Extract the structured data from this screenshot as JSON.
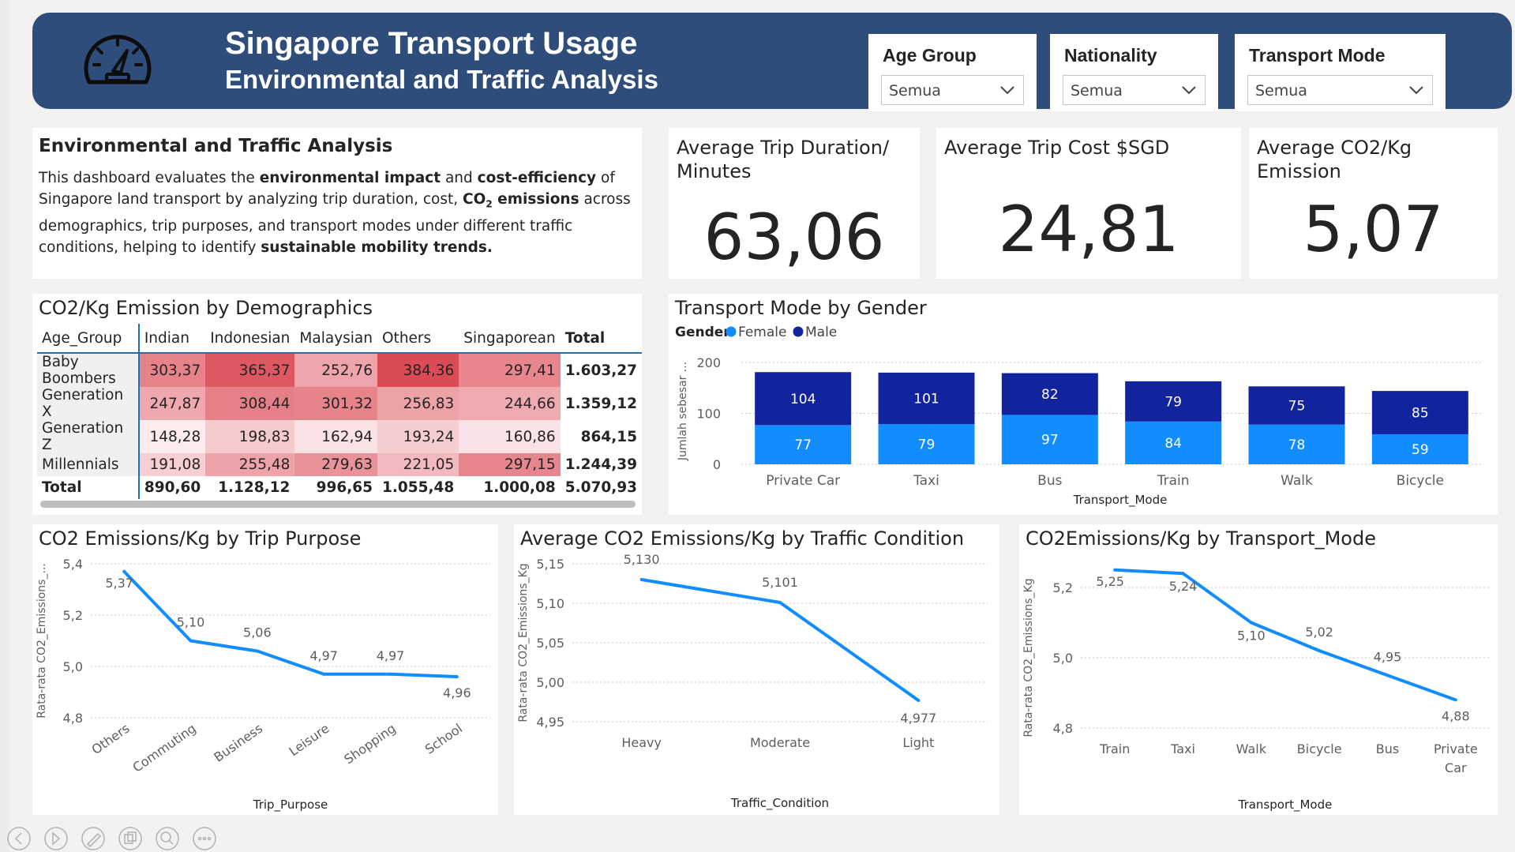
{
  "header": {
    "title": "Singapore Transport Usage",
    "subtitle": "Environmental and Traffic Analysis",
    "logo_icon": "speedometer-icon"
  },
  "filters": [
    {
      "label": "Age Group",
      "value": "Semua"
    },
    {
      "label": "Nationality",
      "value": "Semua"
    },
    {
      "label": "Transport Mode",
      "value": "Semua"
    }
  ],
  "description": {
    "heading": "Environmental and Traffic Analysis",
    "p1": "This dashboard evaluates the ",
    "b1": "environmental impact",
    "p2": " and ",
    "b2": "cost-efficiency",
    "p3": " of Singapore land transport by analyzing trip duration, cost, ",
    "b3": "CO",
    "b3sub": "2",
    "b3b": " emissions",
    "p4": " across demographics, trip purposes, and transport modes under different traffic conditions, helping to identify ",
    "b4": "sustainable mobility trends."
  },
  "kpis": [
    {
      "title": "Average Trip Duration/ Minutes",
      "value": "63,06"
    },
    {
      "title": "Average Trip Cost $SGD",
      "value": "24,81"
    },
    {
      "title": "Average CO2/Kg Emission",
      "value": "5,07"
    }
  ],
  "matrix": {
    "title": "CO2/Kg Emission by Demographics",
    "corner": "Age_Group",
    "columns": [
      "Indian",
      "Indonesian",
      "Malaysian",
      "Others",
      "Singaporean",
      "Total"
    ],
    "rows": [
      {
        "label": "Baby Boombers",
        "cells": [
          "303,37",
          "365,37",
          "252,76",
          "384,36",
          "297,41",
          "1.603,27"
        ],
        "raw": [
          303.37,
          365.37,
          252.76,
          384.36,
          297.41
        ]
      },
      {
        "label": "Generation X",
        "cells": [
          "247,87",
          "308,44",
          "301,32",
          "256,83",
          "244,66",
          "1.359,12"
        ],
        "raw": [
          247.87,
          308.44,
          301.32,
          256.83,
          244.66
        ]
      },
      {
        "label": "Generation Z",
        "cells": [
          "148,28",
          "198,83",
          "162,94",
          "193,24",
          "160,86",
          "864,15"
        ],
        "raw": [
          148.28,
          198.83,
          162.94,
          193.24,
          160.86
        ]
      },
      {
        "label": "Millennials",
        "cells": [
          "191,08",
          "255,48",
          "279,63",
          "221,05",
          "297,15",
          "1.244,39"
        ],
        "raw": [
          191.08,
          255.48,
          279.63,
          221.05,
          297.15
        ]
      }
    ],
    "total": {
      "label": "Total",
      "cells": [
        "890,60",
        "1.128,12",
        "996,65",
        "1.055,48",
        "1.000,08",
        "5.070,93"
      ]
    }
  },
  "gender_chart_title": "Transport Mode by Gender",
  "purpose_chart_title": "CO2 Emissions/Kg by Trip Purpose",
  "traffic_chart_title": "Average CO2 Emissions/Kg by Traffic Condition",
  "mode_chart_title": "CO2Emissions/Kg by Transport_Mode",
  "chart_data": [
    {
      "type": "bar",
      "stacked": true,
      "title": "Transport Mode by Gender",
      "legend_title": "Gender",
      "legend_position": "top-left",
      "categories": [
        "Private Car",
        "Taxi",
        "Bus",
        "Train",
        "Walk",
        "Bicycle"
      ],
      "series": [
        {
          "name": "Female",
          "values": [
            77,
            79,
            97,
            84,
            78,
            59
          ],
          "color": "#118dff"
        },
        {
          "name": "Male",
          "values": [
            104,
            101,
            82,
            79,
            75,
            85
          ],
          "color": "#12239e"
        }
      ],
      "xlabel": "Transport_Mode",
      "ylabel": "Jumlah sebesar ...",
      "ylim": [
        0,
        200
      ],
      "yticks": [
        0,
        100,
        200
      ],
      "grid": true
    },
    {
      "type": "line",
      "title": "CO2 Emissions/Kg by Trip Purpose",
      "categories": [
        "Others",
        "Commuting",
        "Business",
        "Leisure",
        "Shopping",
        "School"
      ],
      "values": [
        5.37,
        5.1,
        5.06,
        4.97,
        4.97,
        4.96
      ],
      "labels": [
        "5,37",
        "5,10",
        "5,06",
        "4,97",
        "4,97",
        "4,96"
      ],
      "xlabel": "Trip_Purpose",
      "ylabel": "Rata-rata CO2_Emissions_...",
      "ylim": [
        4.8,
        5.4
      ],
      "yticks": [
        "4,8",
        "5,0",
        "5,2",
        "5,4"
      ],
      "color": "#118dff",
      "grid": true
    },
    {
      "type": "line",
      "title": "Average CO2 Emissions/Kg by Traffic Condition",
      "categories": [
        "Heavy",
        "Moderate",
        "Light"
      ],
      "values": [
        5.13,
        5.101,
        4.977
      ],
      "labels": [
        "5,130",
        "5,101",
        "4,977"
      ],
      "xlabel": "Traffic_Condition",
      "ylabel": "Rata-rata CO2_Emissions_Kg",
      "ylim": [
        4.95,
        5.15
      ],
      "yticks": [
        "4,95",
        "5,00",
        "5,05",
        "5,10",
        "5,15"
      ],
      "color": "#118dff",
      "grid": true
    },
    {
      "type": "line",
      "title": "CO2Emissions/Kg by Transport_Mode",
      "categories": [
        "Train",
        "Taxi",
        "Walk",
        "Bicycle",
        "Bus",
        "Private Car"
      ],
      "values": [
        5.25,
        5.24,
        5.1,
        5.02,
        4.95,
        4.88
      ],
      "labels": [
        "5,25",
        "5,24",
        "5,10",
        "5,02",
        "4,95",
        "4,88"
      ],
      "xlabel": "Transport_Mode",
      "ylabel": "Rata-rata CO2_Emissions_Kg",
      "ylim": [
        4.8,
        5.2
      ],
      "yticks": [
        "4,8",
        "5,0",
        "5,2"
      ],
      "color": "#118dff",
      "grid": true
    }
  ],
  "footer_icons": [
    "back-icon",
    "play-icon",
    "pen-icon",
    "copy-icon",
    "zoom-icon",
    "more-icon"
  ]
}
